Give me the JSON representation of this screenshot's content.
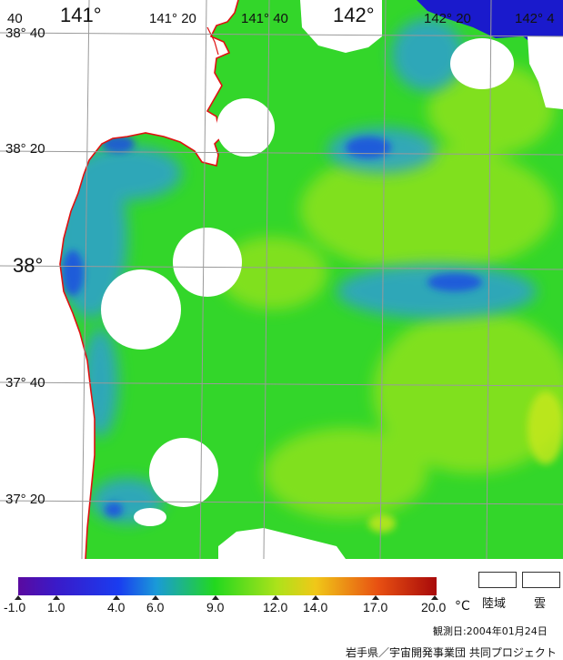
{
  "map": {
    "lon_labels": [
      "141°",
      "141° 20",
      "141° 40",
      "142°",
      "142° 20",
      "142° 4"
    ],
    "lat_labels": [
      "38° 40",
      "38° 20",
      "38°",
      "37° 40",
      "37° 20"
    ],
    "corner_label": "40",
    "colors": {
      "sea_base": "#33d62a",
      "sea_warm": "#8ee21e",
      "sea_cool": "#2ea3c8",
      "sea_cold": "#1a4fe0",
      "sea_dark": "#1a1acc",
      "land": "#ffffff",
      "coast": "#e01010",
      "grid": "#9a9a9a"
    }
  },
  "scale": {
    "tick_labels": [
      "-1.0",
      "1.0",
      "4.0",
      "6.0",
      "9.0",
      "12.0",
      "14.0",
      "17.0",
      "20.0"
    ],
    "unit": "°C"
  },
  "legend": {
    "land": "陸域",
    "cloud": "雲"
  },
  "footer": {
    "observation_date": "観測日:2004年01月24日",
    "credit": "岩手県／宇宙開発事業団 共同プロジェクト"
  }
}
